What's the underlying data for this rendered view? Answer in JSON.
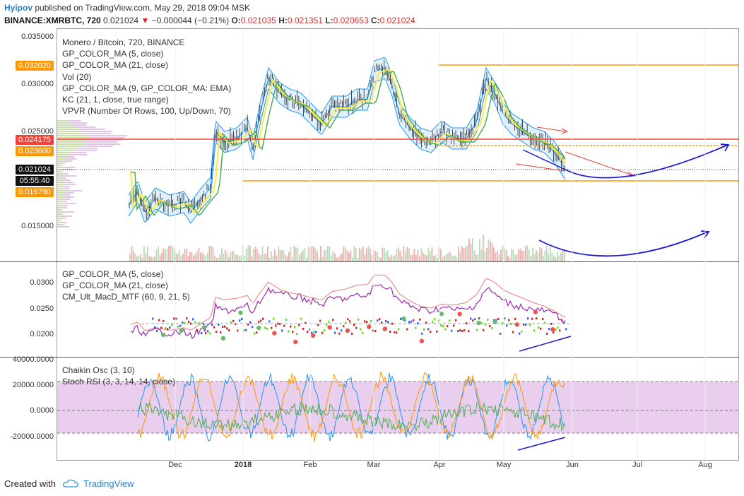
{
  "header": {
    "author": "Hyipov",
    "published": "published on TradingView.com, May 29, 2018 09:04 MSK",
    "symbol": "BINANCE:XMRBTC, 720",
    "last": "0.021024",
    "change_arrow": "▼",
    "change": "−0.000044 (−0.21%)",
    "open_label": "O:",
    "open": "0.021035",
    "high_label": "H:",
    "high": "0.021351",
    "low_label": "L:",
    "low": "0.020653",
    "close_label": "C:",
    "close": "0.021024"
  },
  "legend_main": [
    "Monero / Bitcoin, 720, BINANCE",
    "GP_COLOR_MA (5, close)",
    "GP_COLOR_MA (21, close)",
    "Vol (20)",
    "GP_COLOR_MA (9, GP_COLOR_MA: EMA)",
    "KC (21, 1, close, true range)",
    "VPVR (Number Of Rows, 100, Up/Down, 70)"
  ],
  "legend_pane2": [
    "GP_COLOR_MA (5, close)",
    "GP_COLOR_MA (21, close)",
    "CM_Ult_MacD_MTF (60, 9, 21, 5)"
  ],
  "legend_pane3": [
    "Chaikin Osc (3, 10)",
    "Stoch RSI (3, 3, 14, 14, close)"
  ],
  "yaxis_main": [
    "0.035000",
    "0.030000",
    "0.025000",
    "0.015000"
  ],
  "yaxis_pane2": [
    "0.0300",
    "0.0250",
    "0.0200"
  ],
  "yaxis_pane3": [
    "40000.0000",
    "20000.0000",
    "0.0000",
    "-20000.0000"
  ],
  "price_tags": [
    {
      "text": "0.032020",
      "bg": "#ff9800",
      "fg": "#ffffff"
    },
    {
      "text": "0.024175",
      "bg": "#f44336",
      "fg": "#ffffff"
    },
    {
      "text": "0.023600",
      "bg": "#ff9800",
      "fg": "#ffffff"
    },
    {
      "text": "0.021024",
      "bg": "#111111",
      "fg": "#ffffff"
    },
    {
      "text": "05:55:40",
      "bg": "#111111",
      "fg": "#ffffff"
    },
    {
      "text": "0.019790",
      "bg": "#ff9800",
      "fg": "#ffffff"
    }
  ],
  "xaxis": [
    {
      "label": "Dec",
      "bold": false
    },
    {
      "label": "2018",
      "bold": true
    },
    {
      "label": "Feb",
      "bold": false
    },
    {
      "label": "Mar",
      "bold": false
    },
    {
      "label": "Apr",
      "bold": false
    },
    {
      "label": "May",
      "bold": false
    },
    {
      "label": "Jun",
      "bold": false
    },
    {
      "label": "Jul",
      "bold": false
    },
    {
      "label": "Aug",
      "bold": false
    }
  ],
  "footer": {
    "created": "Created with",
    "brand": "TradingView"
  },
  "colors": {
    "orange_level": "#ff9800",
    "red_level": "#f44336",
    "keltner": "#2196f3",
    "ma_fast": "#ffeb3b",
    "ma_slow": "#4caf50",
    "annotation_blue": "#1a1ad6",
    "annotation_red": "#e53935",
    "stoch_zone": "#e1bee7"
  },
  "icons": {
    "tradingview_logo": "cloud-icon"
  }
}
